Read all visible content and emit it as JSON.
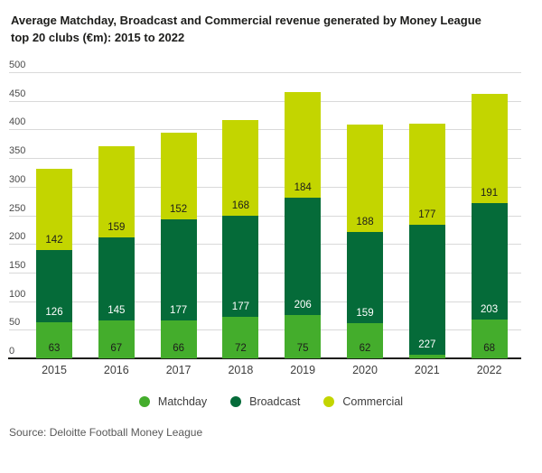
{
  "header": {
    "title_line1": "Average Matchday, Broadcast and Commercial revenue generated by Money League",
    "title_line2": "top 20 clubs (€m): 2015 to 2022"
  },
  "source": "Source: Deloitte Football Money League",
  "colors": {
    "matchday": "#44AD2C",
    "broadcast": "#056B39",
    "commercial": "#C3D500",
    "gridline": "#D9D9D9",
    "axis": "#1D1D1B",
    "title_text": "#1D1D1B",
    "y_tick_text": "#4A4A4A",
    "x_tick_text": "#3D3D3D",
    "source_text": "#595959"
  },
  "chart_data": {
    "type": "bar",
    "stacked": true,
    "title": "Average Matchday, Broadcast and Commercial revenue generated by Money League top 20 clubs (€m): 2015 to 2022",
    "categories": [
      "2015",
      "2016",
      "2017",
      "2018",
      "2019",
      "2020",
      "2021",
      "2022"
    ],
    "series": [
      {
        "name": "Matchday",
        "color": "#44AD2C",
        "label_color": "#1D1D1B",
        "values": [
          63,
          67,
          66,
          72,
          75,
          62,
          6,
          68
        ],
        "labels": [
          "63",
          "67",
          "66",
          "72",
          "75",
          "62",
          "",
          "68"
        ]
      },
      {
        "name": "Broadcast",
        "color": "#056B39",
        "label_color": "#FFFFFF",
        "values": [
          126,
          145,
          177,
          177,
          206,
          159,
          227,
          203
        ],
        "labels": [
          "126",
          "145",
          "177",
          "177",
          "206",
          "159",
          "227",
          "203"
        ]
      },
      {
        "name": "Commercial",
        "color": "#C3D500",
        "label_color": "#1D1D1B",
        "values": [
          142,
          159,
          152,
          168,
          184,
          188,
          177,
          191
        ],
        "labels": [
          "142",
          "159",
          "152",
          "168",
          "184",
          "188",
          "177",
          "191"
        ]
      }
    ],
    "xlabel": "",
    "ylabel": "",
    "ylim": [
      0,
      500
    ],
    "ytick_step": 50,
    "grid": true,
    "legend_position": "bottom",
    "notes": "Value labels sit at the bottom of each stacked segment. The 2021 Matchday segment is a thin sliver with no printed label; its value (~6) is estimated from pixel height."
  }
}
